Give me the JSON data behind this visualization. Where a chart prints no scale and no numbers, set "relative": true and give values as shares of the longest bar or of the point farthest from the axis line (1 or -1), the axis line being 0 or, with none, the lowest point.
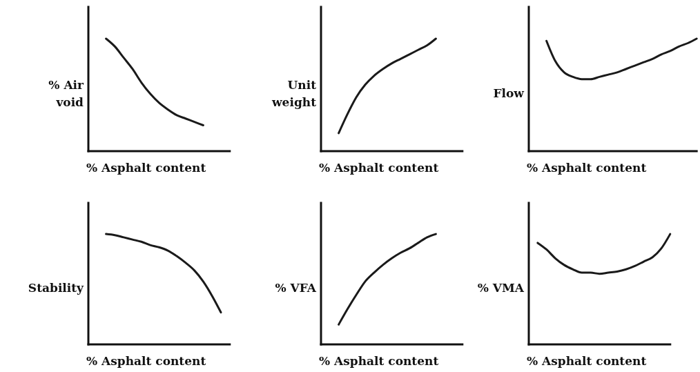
{
  "chart_data": [
    {
      "type": "line",
      "relative": true,
      "color": "#1a1a1a",
      "xlabel": "% Asphalt content",
      "ylabel": "% Air void",
      "categories": [
        null,
        null,
        null,
        null,
        null,
        null,
        null,
        null,
        null,
        null,
        null,
        null,
        null,
        null,
        null,
        null,
        null
      ],
      "values": [
        null,
        null,
        1,
        0.93,
        0.83,
        0.73,
        0.61,
        0.51,
        0.43,
        0.37,
        0.32,
        0.29,
        0.26,
        0.23,
        null,
        null,
        null
      ]
    },
    {
      "type": "line",
      "relative": true,
      "color": "#1a1a1a",
      "xlabel": "% Asphalt content",
      "ylabel": "Unit weight",
      "categories": [
        null,
        null,
        null,
        null,
        null,
        null,
        null,
        null,
        null,
        null,
        null,
        null,
        null,
        null,
        null,
        null,
        null
      ],
      "values": [
        null,
        null,
        0.16,
        0.33,
        0.48,
        0.59,
        0.67,
        0.73,
        0.78,
        0.82,
        0.86,
        0.9,
        0.94,
        1,
        null,
        null,
        null
      ]
    },
    {
      "type": "line",
      "relative": true,
      "color": "#1a1a1a",
      "xlabel": "% Asphalt content",
      "ylabel": "Flow",
      "categories": [
        null,
        null,
        null,
        null,
        null,
        null,
        null,
        null,
        null,
        null,
        null,
        null,
        null,
        null,
        null,
        null,
        null,
        null,
        null,
        null
      ],
      "values": [
        null,
        null,
        0.98,
        0.8,
        0.7,
        0.66,
        0.64,
        0.64,
        0.66,
        0.68,
        0.7,
        0.73,
        0.76,
        0.79,
        0.82,
        0.86,
        0.89,
        0.93,
        0.96,
        1
      ]
    },
    {
      "type": "line",
      "relative": true,
      "color": "#1a1a1a",
      "xlabel": "% Asphalt content",
      "ylabel": "Stability",
      "categories": [
        null,
        null,
        null,
        null,
        null,
        null,
        null,
        null,
        null,
        null,
        null,
        null,
        null,
        null,
        null,
        null,
        null
      ],
      "values": [
        null,
        null,
        1,
        0.99,
        0.97,
        0.95,
        0.93,
        0.9,
        0.88,
        0.85,
        0.8,
        0.74,
        0.67,
        0.57,
        0.44,
        0.29,
        null
      ]
    },
    {
      "type": "line",
      "relative": true,
      "color": "#1a1a1a",
      "xlabel": "% Asphalt content",
      "ylabel": "% VFA",
      "categories": [
        null,
        null,
        null,
        null,
        null,
        null,
        null,
        null,
        null,
        null,
        null,
        null,
        null,
        null,
        null,
        null,
        null
      ],
      "values": [
        null,
        null,
        0.18,
        0.32,
        0.45,
        0.57,
        0.65,
        0.72,
        0.78,
        0.83,
        0.87,
        0.92,
        0.97,
        1,
        null,
        null,
        null
      ]
    },
    {
      "type": "line",
      "relative": true,
      "color": "#1a1a1a",
      "xlabel": "% Asphalt content",
      "ylabel": "% VMA",
      "categories": [
        null,
        null,
        null,
        null,
        null,
        null,
        null,
        null,
        null,
        null,
        null,
        null,
        null,
        null,
        null,
        null,
        null
      ],
      "values": [
        null,
        0.92,
        0.86,
        0.78,
        0.72,
        0.68,
        0.65,
        0.65,
        0.64,
        0.65,
        0.66,
        0.68,
        0.71,
        0.75,
        0.79,
        0.87,
        1
      ]
    }
  ]
}
